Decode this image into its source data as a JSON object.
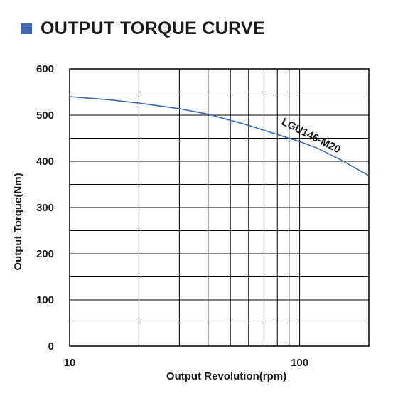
{
  "page": {
    "title": "OUTPUT TORQUE CURVE",
    "title_marker_color": "#3c68b4"
  },
  "chart_data": {
    "type": "line",
    "title": "OUTPUT TORQUE CURVE",
    "xlabel": "Output Revolution(rpm)",
    "ylabel": "Output Torque(Nm)",
    "x_scale": "log",
    "xlim": [
      10,
      200
    ],
    "ylim": [
      0,
      600
    ],
    "x_tick_labels": [
      "10",
      "100"
    ],
    "y_ticks": [
      0,
      100,
      200,
      300,
      400,
      500,
      600
    ],
    "y_minor_gridlines": [
      50,
      150,
      250,
      350,
      450,
      550
    ],
    "grid": true,
    "series": [
      {
        "name": "LGU146-M20",
        "color": "#3c68b4",
        "points": [
          [
            10,
            540
          ],
          [
            15,
            533
          ],
          [
            20,
            526
          ],
          [
            30,
            514
          ],
          [
            40,
            502
          ],
          [
            50,
            489
          ],
          [
            60,
            478
          ],
          [
            70,
            467
          ],
          [
            80,
            458
          ],
          [
            90,
            450
          ],
          [
            100,
            443
          ],
          [
            120,
            428
          ],
          [
            150,
            404
          ],
          [
            200,
            369
          ]
        ]
      }
    ],
    "annotations": [
      {
        "text": "LGU146-M20",
        "x": 110,
        "y": 450
      }
    ]
  }
}
